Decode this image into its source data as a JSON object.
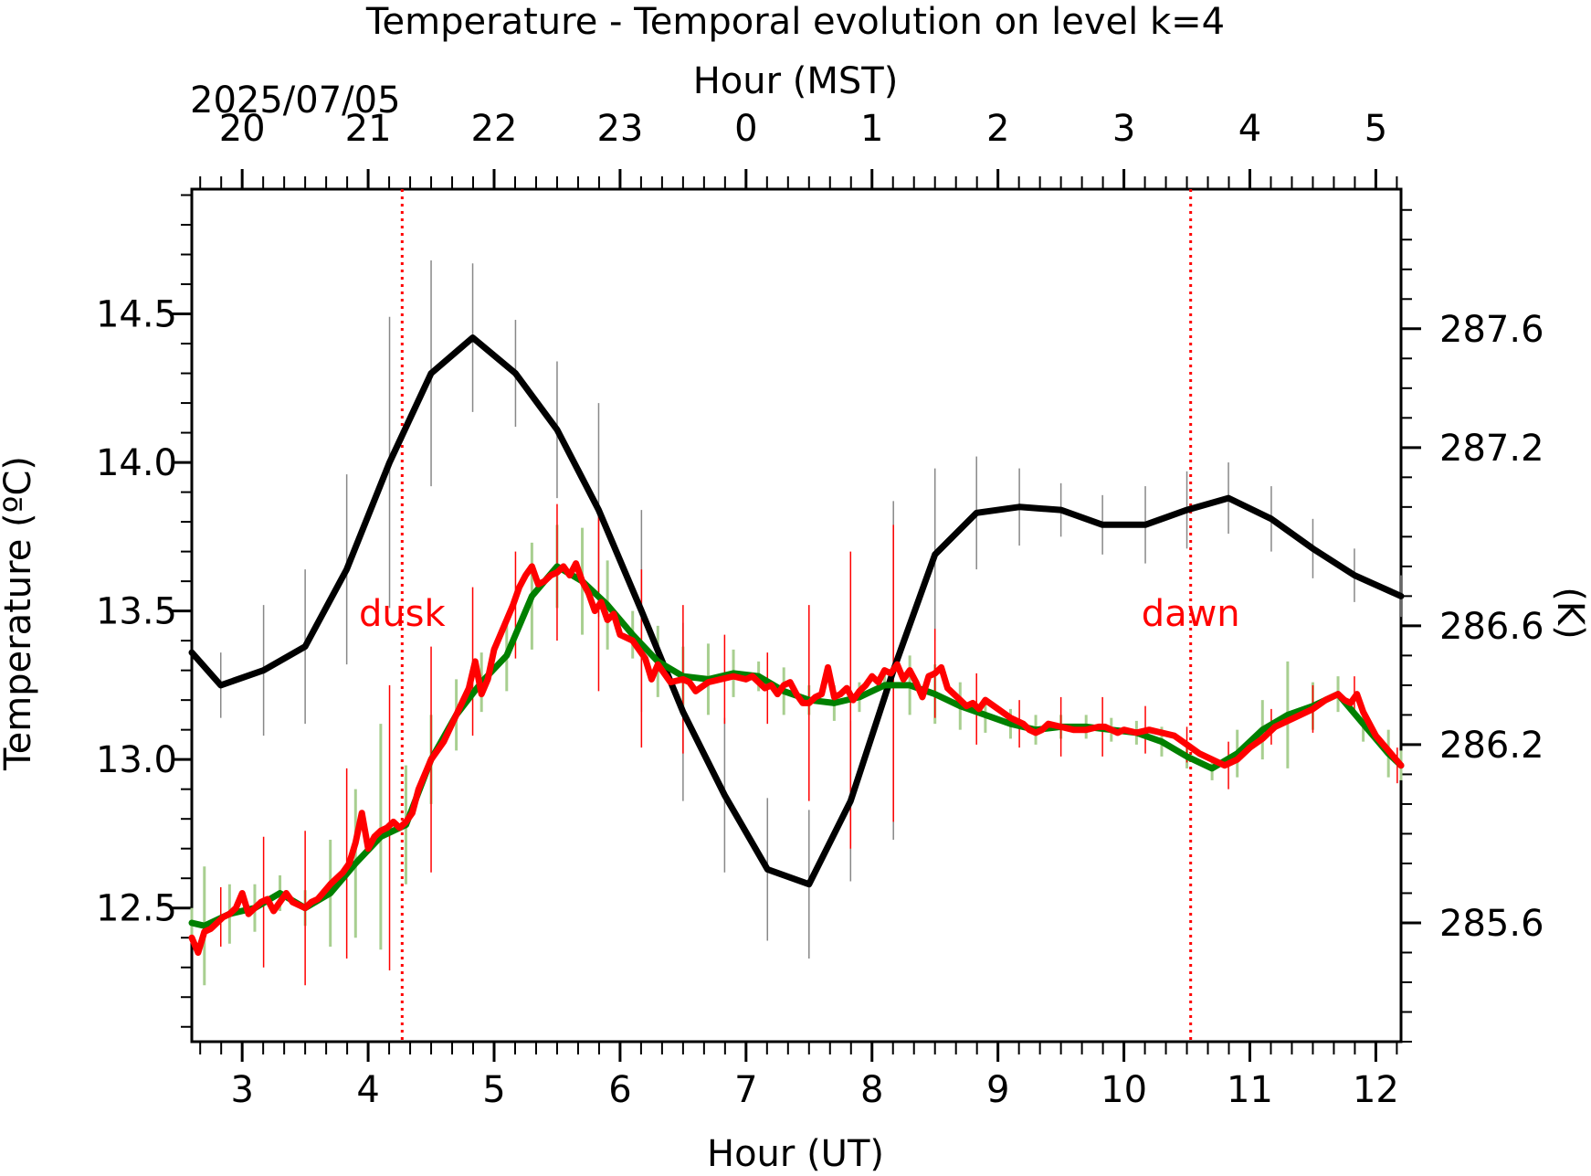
{
  "chart_data": {
    "type": "line",
    "title": "Temperature - Temporal evolution on level k=4",
    "xlabel": "Hour (UT)",
    "x2label": "Hour (MST)",
    "x2date": "2025/07/05",
    "ylabel": "Temperature (ºC)",
    "y2label": "(K)",
    "xlim": [
      2.6,
      12.2
    ],
    "ylim": [
      12.05,
      14.92
    ],
    "y2lim": [
      285.2,
      288.07
    ],
    "x_ticks": [
      3,
      4,
      5,
      6,
      7,
      8,
      9,
      10,
      11,
      12
    ],
    "x2_ticks": [
      {
        "x": 3,
        "label": "20"
      },
      {
        "x": 4,
        "label": "21"
      },
      {
        "x": 5,
        "label": "22"
      },
      {
        "x": 6,
        "label": "23"
      },
      {
        "x": 7,
        "label": "0"
      },
      {
        "x": 8,
        "label": "1"
      },
      {
        "x": 9,
        "label": "2"
      },
      {
        "x": 10,
        "label": "3"
      },
      {
        "x": 11,
        "label": "4"
      },
      {
        "x": 12,
        "label": "5"
      }
    ],
    "y_ticks": [
      "12.5",
      "13.0",
      "13.5",
      "14.0",
      "14.5"
    ],
    "y2_ticks": [
      "285.6",
      "286.2",
      "286.6",
      "287.2",
      "287.6"
    ],
    "grid": false,
    "annotations": [
      {
        "label": "dusk",
        "x": 4.27,
        "color": "#ff0000"
      },
      {
        "label": "dawn",
        "x": 10.53,
        "color": "#ff0000"
      }
    ],
    "series": [
      {
        "color": "#000000",
        "errorbar_color": "#888888",
        "x": [
          2.6,
          2.83,
          3.17,
          3.5,
          3.83,
          4.17,
          4.5,
          4.83,
          5.17,
          5.5,
          5.83,
          6.17,
          6.5,
          6.83,
          7.17,
          7.5,
          7.83,
          8.17,
          8.5,
          8.83,
          9.17,
          9.5,
          9.83,
          10.17,
          10.5,
          10.83,
          11.17,
          11.5,
          11.83,
          12.2
        ],
        "y": [
          13.36,
          13.25,
          13.3,
          13.38,
          13.64,
          14.0,
          14.3,
          14.42,
          14.3,
          14.11,
          13.84,
          13.5,
          13.16,
          12.88,
          12.63,
          12.58,
          12.86,
          13.3,
          13.69,
          13.83,
          13.85,
          13.84,
          13.79,
          13.79,
          13.84,
          13.88,
          13.81,
          13.71,
          13.62,
          13.55
        ],
        "err": [
          0,
          0.11,
          0.22,
          0.26,
          0.32,
          0.49,
          0.38,
          0.25,
          0.18,
          0.23,
          0.36,
          0.34,
          0.3,
          0.26,
          0.24,
          0.25,
          0.27,
          0.57,
          0.29,
          0.19,
          0.13,
          0.09,
          0.1,
          0.13,
          0.13,
          0.12,
          0.11,
          0.1,
          0.09,
          0.07
        ]
      },
      {
        "color": "#008000",
        "errorbar_color": "#a8cf90",
        "x": [
          2.6,
          2.7,
          2.9,
          3.1,
          3.3,
          3.5,
          3.7,
          3.9,
          4.1,
          4.3,
          4.5,
          4.7,
          4.9,
          5.1,
          5.3,
          5.5,
          5.7,
          5.9,
          6.1,
          6.3,
          6.5,
          6.7,
          6.9,
          7.1,
          7.3,
          7.5,
          7.7,
          7.9,
          8.1,
          8.3,
          8.5,
          8.7,
          8.9,
          9.1,
          9.3,
          9.5,
          9.7,
          9.9,
          10.1,
          10.3,
          10.5,
          10.7,
          10.9,
          11.1,
          11.3,
          11.5,
          11.7,
          11.9,
          12.1,
          12.2
        ],
        "y": [
          12.45,
          12.44,
          12.48,
          12.5,
          12.55,
          12.5,
          12.55,
          12.65,
          12.74,
          12.78,
          13.0,
          13.15,
          13.26,
          13.35,
          13.55,
          13.65,
          13.6,
          13.52,
          13.42,
          13.33,
          13.28,
          13.27,
          13.29,
          13.28,
          13.23,
          13.2,
          13.19,
          13.21,
          13.25,
          13.25,
          13.22,
          13.18,
          13.15,
          13.12,
          13.1,
          13.11,
          13.11,
          13.1,
          13.09,
          13.06,
          13.01,
          12.97,
          13.02,
          13.1,
          13.15,
          13.18,
          13.22,
          13.12,
          13.02,
          12.98
        ],
        "err": [
          0.05,
          0.2,
          0.1,
          0.08,
          0.06,
          0.06,
          0.18,
          0.25,
          0.38,
          0.2,
          0.15,
          0.12,
          0.1,
          0.12,
          0.18,
          0.14,
          0.18,
          0.15,
          0.08,
          0.12,
          0.1,
          0.12,
          0.08,
          0.05,
          0.08,
          0.05,
          0.06,
          0.05,
          0.06,
          0.1,
          0.1,
          0.08,
          0.06,
          0.05,
          0.05,
          0.04,
          0.04,
          0.04,
          0.04,
          0.05,
          0.04,
          0.04,
          0.08,
          0.1,
          0.18,
          0.08,
          0.06,
          0.06,
          0.08,
          0.05
        ]
      },
      {
        "color": "#ff0000",
        "errorbar_color": "#ff0000",
        "x": [
          2.6,
          2.65,
          2.7,
          2.75,
          2.8,
          2.85,
          2.9,
          2.95,
          3.0,
          3.05,
          3.1,
          3.15,
          3.2,
          3.25,
          3.3,
          3.35,
          3.4,
          3.45,
          3.5,
          3.55,
          3.6,
          3.7,
          3.8,
          3.85,
          3.9,
          3.95,
          4.0,
          4.05,
          4.1,
          4.15,
          4.2,
          4.25,
          4.3,
          4.35,
          4.4,
          4.5,
          4.6,
          4.7,
          4.8,
          4.85,
          4.9,
          4.95,
          5.0,
          5.05,
          5.1,
          5.15,
          5.2,
          5.25,
          5.3,
          5.35,
          5.4,
          5.45,
          5.5,
          5.55,
          5.6,
          5.65,
          5.7,
          5.75,
          5.8,
          5.85,
          5.9,
          5.95,
          6.0,
          6.1,
          6.2,
          6.25,
          6.3,
          6.35,
          6.4,
          6.5,
          6.55,
          6.6,
          6.7,
          6.8,
          6.9,
          7.0,
          7.05,
          7.1,
          7.15,
          7.2,
          7.25,
          7.3,
          7.35,
          7.4,
          7.45,
          7.5,
          7.55,
          7.6,
          7.65,
          7.7,
          7.75,
          7.8,
          7.85,
          7.9,
          7.95,
          8.0,
          8.05,
          8.1,
          8.15,
          8.2,
          8.25,
          8.3,
          8.35,
          8.4,
          8.45,
          8.5,
          8.55,
          8.6,
          8.65,
          8.7,
          8.75,
          8.8,
          8.85,
          8.9,
          9.0,
          9.1,
          9.2,
          9.25,
          9.3,
          9.35,
          9.4,
          9.5,
          9.6,
          9.7,
          9.8,
          9.85,
          9.9,
          9.95,
          10.0,
          10.1,
          10.2,
          10.3,
          10.4,
          10.5,
          10.6,
          10.7,
          10.8,
          10.9,
          11.0,
          11.1,
          11.2,
          11.3,
          11.4,
          11.5,
          11.6,
          11.65,
          11.7,
          11.75,
          11.8,
          11.85,
          11.9,
          12.0,
          12.1,
          12.2
        ],
        "y": [
          12.4,
          12.35,
          12.42,
          12.43,
          12.45,
          12.47,
          12.48,
          12.5,
          12.55,
          12.48,
          12.5,
          12.52,
          12.53,
          12.49,
          12.52,
          12.55,
          12.52,
          12.51,
          12.5,
          12.52,
          12.53,
          12.58,
          12.62,
          12.65,
          12.72,
          12.82,
          12.7,
          12.74,
          12.76,
          12.77,
          12.79,
          12.77,
          12.79,
          12.82,
          12.9,
          13.0,
          13.06,
          13.15,
          13.24,
          13.33,
          13.22,
          13.27,
          13.37,
          13.42,
          13.47,
          13.52,
          13.58,
          13.62,
          13.65,
          13.59,
          13.6,
          13.62,
          13.63,
          13.65,
          13.62,
          13.66,
          13.6,
          13.56,
          13.5,
          13.53,
          13.47,
          13.49,
          13.42,
          13.4,
          13.34,
          13.27,
          13.32,
          13.29,
          13.26,
          13.27,
          13.26,
          13.23,
          13.26,
          13.27,
          13.28,
          13.27,
          13.28,
          13.26,
          13.24,
          13.25,
          13.22,
          13.25,
          13.26,
          13.22,
          13.19,
          13.19,
          13.21,
          13.22,
          13.31,
          13.21,
          13.22,
          13.24,
          13.2,
          13.23,
          13.25,
          13.28,
          13.26,
          13.3,
          13.29,
          13.32,
          13.27,
          13.3,
          13.26,
          13.21,
          13.28,
          13.29,
          13.31,
          13.24,
          13.22,
          13.2,
          13.18,
          13.19,
          13.17,
          13.2,
          13.17,
          13.14,
          13.12,
          13.1,
          13.09,
          13.1,
          13.12,
          13.11,
          13.1,
          13.1,
          13.11,
          13.11,
          13.1,
          13.09,
          13.1,
          13.09,
          13.1,
          13.09,
          13.08,
          13.05,
          13.02,
          13.0,
          12.98,
          13.0,
          13.04,
          13.07,
          13.11,
          13.13,
          13.15,
          13.17,
          13.2,
          13.21,
          13.22,
          13.2,
          13.19,
          13.22,
          13.16,
          13.08,
          13.03,
          12.98
        ],
        "errbars": [
          {
            "x": 2.83,
            "err": 0.1
          },
          {
            "x": 3.17,
            "err": 0.22
          },
          {
            "x": 3.5,
            "err": 0.26
          },
          {
            "x": 3.83,
            "err": 0.32
          },
          {
            "x": 4.17,
            "err": 0.48
          },
          {
            "x": 4.5,
            "err": 0.38
          },
          {
            "x": 4.83,
            "err": 0.25
          },
          {
            "x": 5.17,
            "err": 0.18
          },
          {
            "x": 5.5,
            "err": 0.23
          },
          {
            "x": 5.83,
            "err": 0.3
          },
          {
            "x": 6.17,
            "err": 0.3
          },
          {
            "x": 6.5,
            "err": 0.25
          },
          {
            "x": 6.83,
            "err": 0.15
          },
          {
            "x": 7.17,
            "err": 0.12
          },
          {
            "x": 7.5,
            "err": 0.33
          },
          {
            "x": 7.83,
            "err": 0.5
          },
          {
            "x": 8.17,
            "err": 0.5
          },
          {
            "x": 8.5,
            "err": 0.15
          },
          {
            "x": 8.83,
            "err": 0.12
          },
          {
            "x": 9.17,
            "err": 0.08
          },
          {
            "x": 9.5,
            "err": 0.1
          },
          {
            "x": 9.83,
            "err": 0.1
          },
          {
            "x": 10.17,
            "err": 0.08
          },
          {
            "x": 10.5,
            "err": 0.06
          },
          {
            "x": 10.83,
            "err": 0.08
          },
          {
            "x": 11.17,
            "err": 0.06
          },
          {
            "x": 11.5,
            "err": 0.08
          },
          {
            "x": 11.83,
            "err": 0.06
          },
          {
            "x": 12.17,
            "err": 0.06
          }
        ]
      }
    ]
  }
}
